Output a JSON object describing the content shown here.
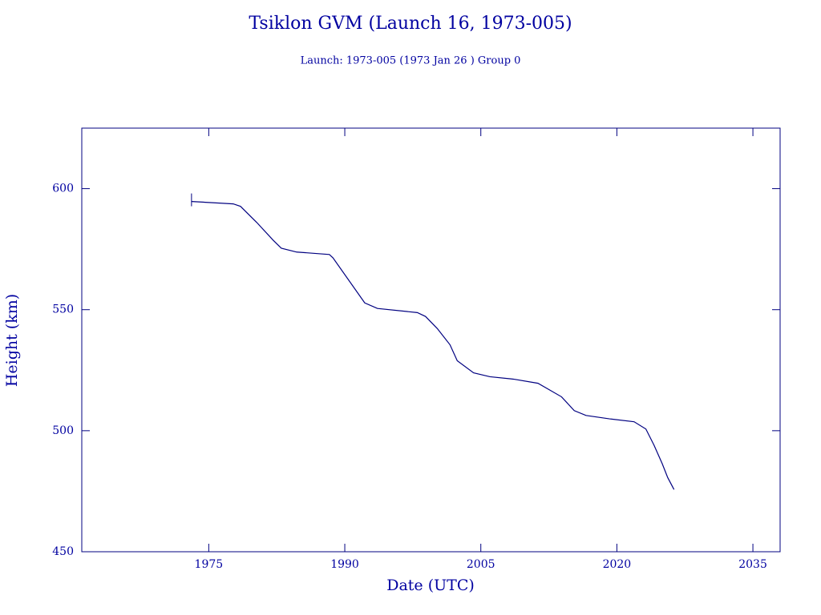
{
  "chart_data": {
    "type": "line",
    "title": "Tsiklon GVM (Launch 16, 1973-005)",
    "subtitle": "Launch: 1973-005  (1973 Jan 26 )  Group 0",
    "xlabel": "Date (UTC)",
    "ylabel": "Height (km)",
    "x": [
      1973.1,
      1977.7,
      1978.5,
      1980.3,
      1982.1,
      1983.0,
      1984.7,
      1988.3,
      1988.7,
      1992.2,
      1993.6,
      1998.0,
      1998.9,
      2000.2,
      2001.6,
      2002.4,
      2004.2,
      2006.0,
      2008.6,
      2011.3,
      2013.9,
      2015.3,
      2016.6,
      2019.2,
      2021.9,
      2023.2,
      2024.1,
      2025.0,
      2025.6,
      2026.3
    ],
    "series": [
      {
        "name": "Height",
        "color": "#000080",
        "values": [
          594.7,
          593.7,
          592.7,
          586,
          578.7,
          575.4,
          573.8,
          572.8,
          571.4,
          552.8,
          550.5,
          548.8,
          547.2,
          542.2,
          535.5,
          528.9,
          523.9,
          522.3,
          521.3,
          519.6,
          514,
          508.3,
          506.3,
          504.9,
          503.7,
          500.7,
          494,
          486.4,
          480.7,
          475.7
        ]
      }
    ],
    "xlim": [
      1961,
      2038
    ],
    "xticks": [
      1975,
      1990,
      2005,
      2020,
      2035
    ],
    "ylim": [
      450,
      625
    ],
    "yticks": [
      450,
      500,
      550,
      600
    ],
    "axis_color": "#000080"
  }
}
